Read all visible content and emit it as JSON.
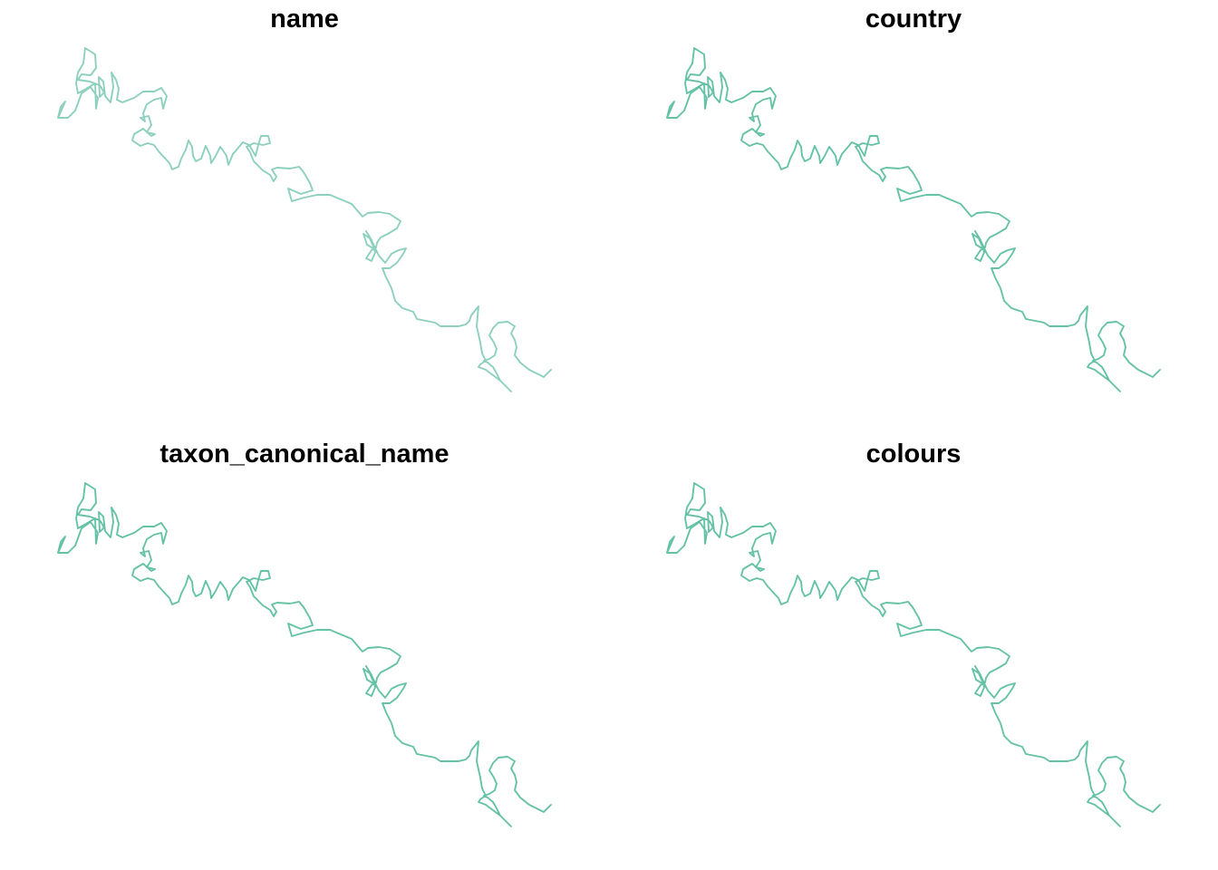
{
  "panels": [
    {
      "title": "name",
      "color": "#8dd0bd"
    },
    {
      "title": "country",
      "color": "#66c2a5"
    },
    {
      "title": "taxon_canonical_name",
      "color": "#66c2a5"
    },
    {
      "title": "colours",
      "color": "#66c2a5"
    }
  ]
}
